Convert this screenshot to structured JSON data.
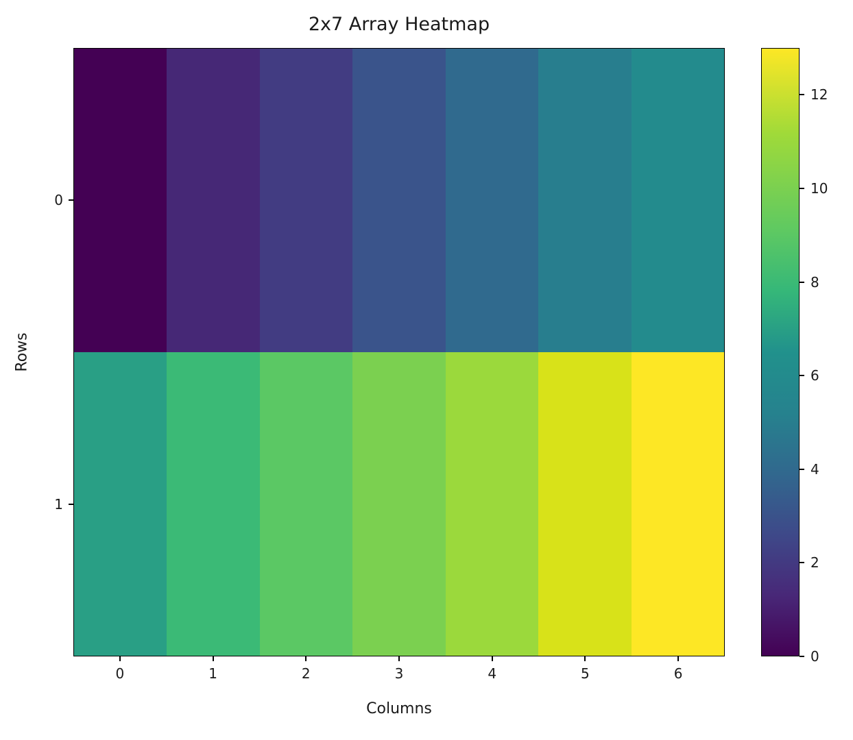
{
  "chart_data": {
    "type": "heatmap",
    "title": "2x7 Array Heatmap",
    "xlabel": "Columns",
    "ylabel": "Rows",
    "rows": 2,
    "cols": 7,
    "values": [
      [
        0,
        1,
        2,
        3,
        4,
        5,
        6
      ],
      [
        7,
        8,
        9,
        10,
        11,
        12,
        13
      ]
    ],
    "x_tick_labels": [
      "0",
      "1",
      "2",
      "3",
      "4",
      "5",
      "6"
    ],
    "y_tick_labels": [
      "0",
      "1"
    ],
    "vmin": 0,
    "vmax": 13,
    "colormap": "viridis",
    "colorbar_tick_values": [
      0,
      2,
      4,
      6,
      8,
      10,
      12
    ],
    "colorbar_tick_labels": [
      "0",
      "2",
      "4",
      "6",
      "8",
      "10",
      "12"
    ],
    "legend": "none",
    "grid": false,
    "cell_colors": [
      [
        "#440154",
        "#462876",
        "#423c82",
        "#3a548b",
        "#306a8e",
        "#287e8e",
        "#238b8d"
      ],
      [
        "#299f85",
        "#3bba76",
        "#5bc864",
        "#7bd050",
        "#9bd93c",
        "#d8e219",
        "#fde725"
      ]
    ],
    "colorbar_gradient_stops": [
      {
        "color": "#440154",
        "pos": 0
      },
      {
        "color": "#482878",
        "pos": 10
      },
      {
        "color": "#3e4989",
        "pos": 20
      },
      {
        "color": "#31688e",
        "pos": 30
      },
      {
        "color": "#26828e",
        "pos": 40
      },
      {
        "color": "#21918c",
        "pos": 50
      },
      {
        "color": "#35b779",
        "pos": 60
      },
      {
        "color": "#5ec962",
        "pos": 70
      },
      {
        "color": "#a0da39",
        "pos": 86
      },
      {
        "color": "#fde725",
        "pos": 100
      }
    ],
    "text_color": "#1a1a1a",
    "spine_color": "#000000",
    "background_color": "#ffffff"
  }
}
